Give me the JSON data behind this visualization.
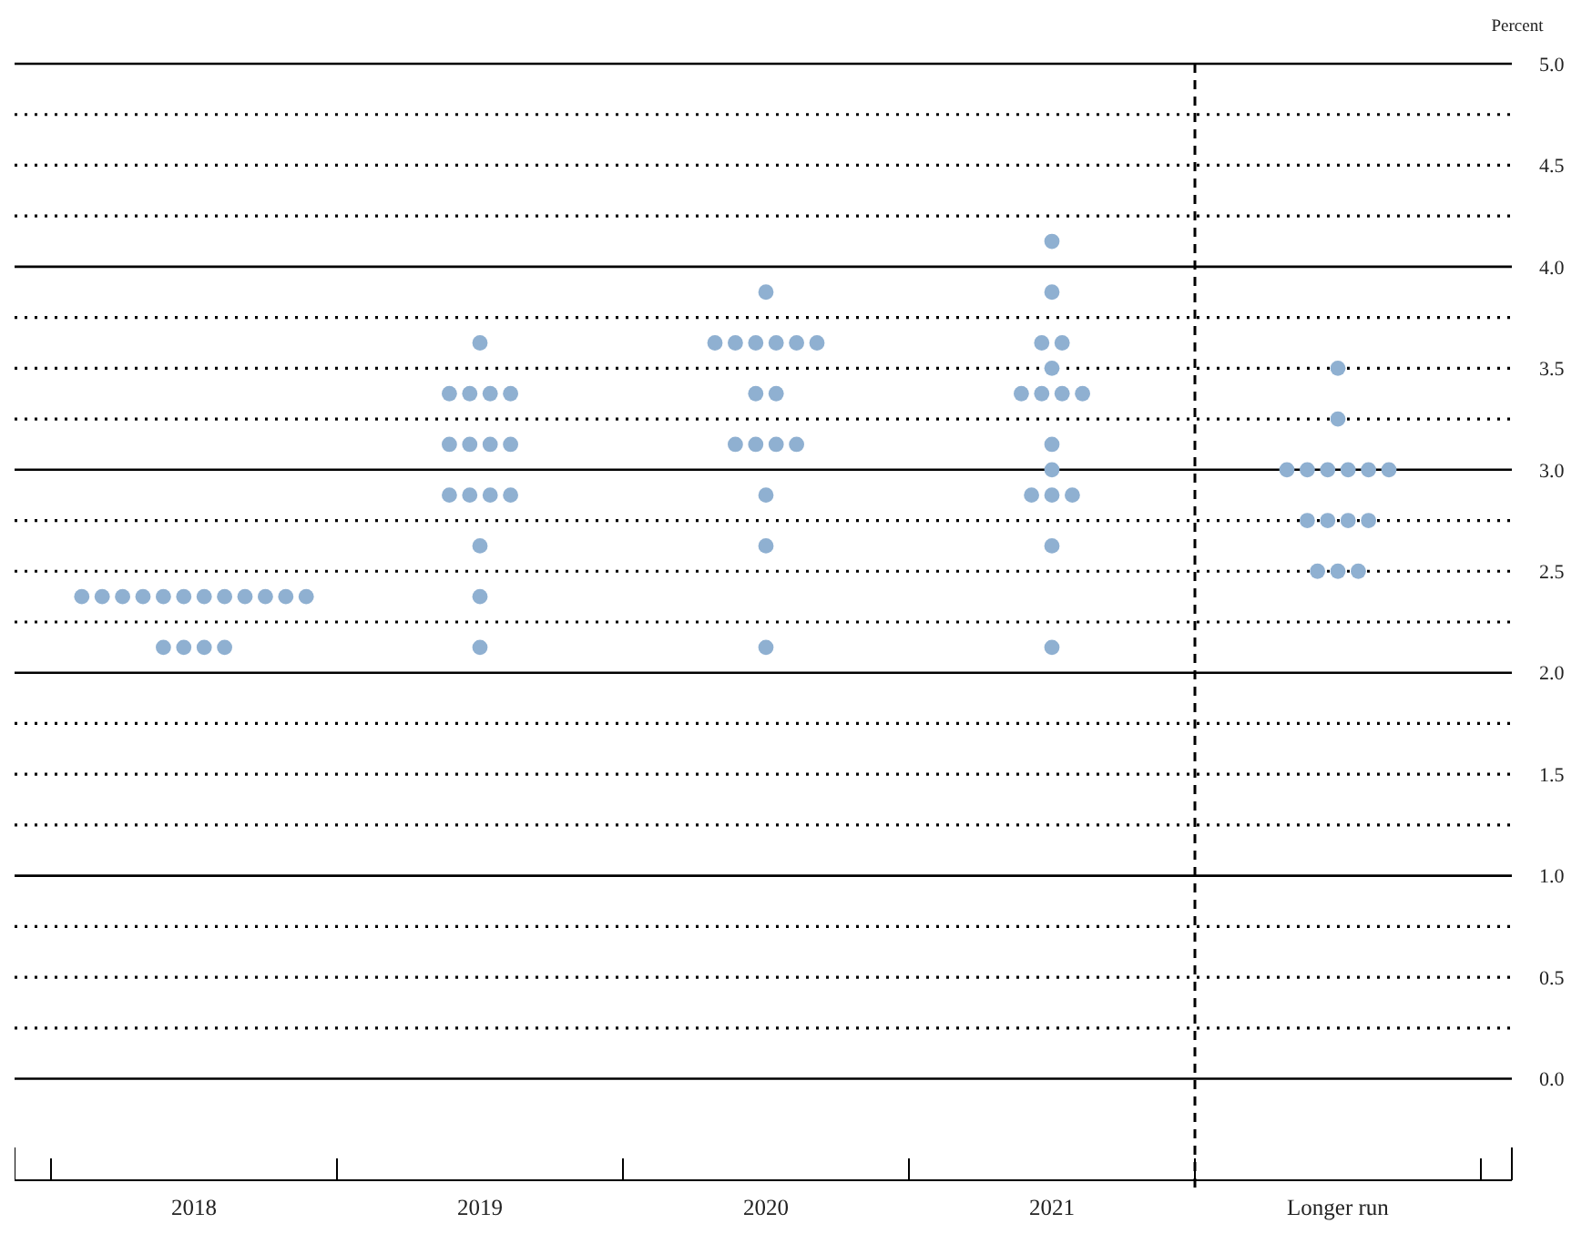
{
  "chart_data": {
    "type": "scatter",
    "ylabel": "Percent",
    "categories": [
      "2018",
      "2019",
      "2020",
      "2021",
      "Longer run"
    ],
    "series": [
      {
        "color": "#8fb0d1",
        "values": [
          2.375,
          3.625,
          3.875,
          4.125,
          3.5
        ]
      },
      {
        "color": "#8fb0d1",
        "values": [
          2.375,
          3.375,
          3.625,
          3.875,
          3.25
        ]
      },
      {
        "color": "#8fb0d1",
        "values": [
          2.375,
          3.375,
          3.625,
          3.625,
          3.0
        ]
      },
      {
        "color": "#8fb0d1",
        "values": [
          2.375,
          3.375,
          3.625,
          3.625,
          3.0
        ]
      },
      {
        "color": "#8fb0d1",
        "values": [
          2.375,
          3.375,
          3.625,
          3.5,
          3.0
        ]
      },
      {
        "color": "#8fb0d1",
        "values": [
          2.375,
          3.125,
          3.625,
          3.375,
          3.0
        ]
      },
      {
        "color": "#8fb0d1",
        "values": [
          2.375,
          3.125,
          3.625,
          3.375,
          3.0
        ]
      },
      {
        "color": "#8fb0d1",
        "values": [
          2.375,
          3.125,
          3.375,
          3.375,
          3.0
        ]
      },
      {
        "color": "#8fb0d1",
        "values": [
          2.375,
          3.125,
          3.375,
          3.375,
          2.75
        ]
      },
      {
        "color": "#8fb0d1",
        "values": [
          2.375,
          2.875,
          3.125,
          3.125,
          2.75
        ]
      },
      {
        "color": "#8fb0d1",
        "values": [
          2.375,
          2.875,
          3.125,
          3.0,
          2.75
        ]
      },
      {
        "color": "#8fb0d1",
        "values": [
          2.375,
          2.875,
          3.125,
          2.875,
          2.75
        ]
      },
      {
        "color": "#8fb0d1",
        "values": [
          2.125,
          2.875,
          3.125,
          2.875,
          2.5
        ]
      },
      {
        "color": "#8fb0d1",
        "values": [
          2.125,
          2.625,
          2.875,
          2.875,
          2.5
        ]
      },
      {
        "color": "#8fb0d1",
        "values": [
          2.125,
          2.375,
          2.625,
          2.625,
          2.5
        ]
      },
      {
        "color": "#8fb0d1",
        "values": [
          2.125,
          2.125,
          2.125,
          2.125,
          null
        ]
      }
    ],
    "marker": "circle",
    "ylim": [
      -0.5,
      5.0
    ],
    "yticks": [
      {
        "value": 0,
        "label": "0.0"
      },
      {
        "value": 0.25,
        "label": null
      },
      {
        "value": 0.5,
        "label": "0.5"
      },
      {
        "value": 0.75,
        "label": null
      },
      {
        "value": 1,
        "label": "1.0"
      },
      {
        "value": 1.25,
        "label": null
      },
      {
        "value": 1.5,
        "label": "1.5"
      },
      {
        "value": 1.75,
        "label": null
      },
      {
        "value": 2,
        "label": "2.0"
      },
      {
        "value": 2.25,
        "label": null
      },
      {
        "value": 2.5,
        "label": "2.5"
      },
      {
        "value": 2.75,
        "label": null
      },
      {
        "value": 3,
        "label": "3.0"
      },
      {
        "value": 3.25,
        "label": null
      },
      {
        "value": 3.5,
        "label": "3.5"
      },
      {
        "value": 3.75,
        "label": null
      },
      {
        "value": 4,
        "label": "4.0"
      },
      {
        "value": 4.25,
        "label": null
      },
      {
        "value": 4.5,
        "label": "4.5"
      },
      {
        "value": 4.75,
        "label": null
      },
      {
        "value": 5,
        "label": "5.0"
      }
    ],
    "grid": "y"
  }
}
